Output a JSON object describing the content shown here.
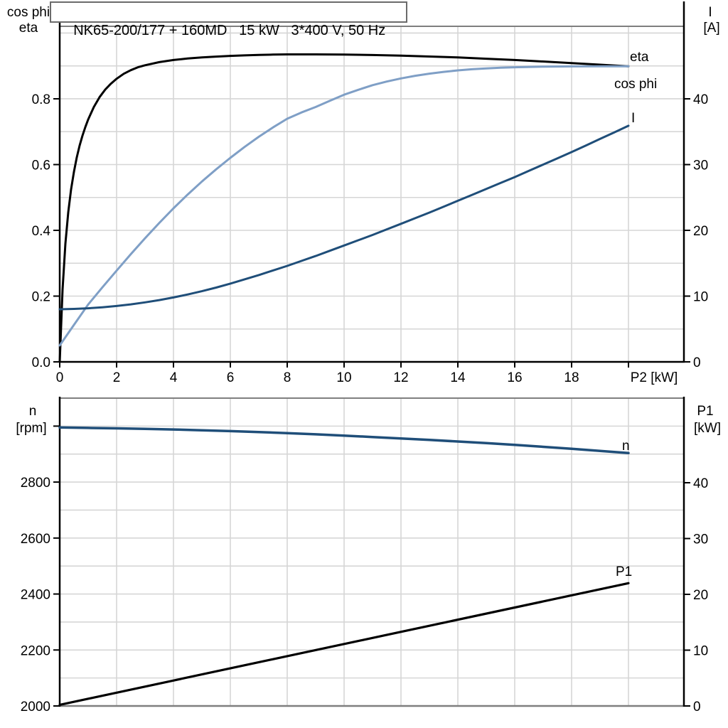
{
  "title": "NK65-200/177 + 160MD   15 kW   3*400 V, 50 Hz",
  "colors": {
    "black": "#000000",
    "dark_blue": "#1f4e79",
    "light_blue": "#7f9fc6",
    "grid": "#d6d6d6",
    "frame": "#7f7f7f"
  },
  "chart_data": [
    {
      "type": "line",
      "title": "NK65-200/177 + 160MD   15 kW   3*400 V, 50 Hz",
      "x_axis": {
        "label": "P2 [kW]",
        "min": 0,
        "max": 21.95,
        "tick_values": [
          0,
          2,
          4,
          6,
          8,
          10,
          12,
          14,
          16,
          18,
          20
        ],
        "tick_labels": [
          "0",
          "2",
          "4",
          "6",
          "8",
          "10",
          "12",
          "14",
          "16",
          "18",
          ""
        ],
        "gridlines": [
          2,
          4,
          6,
          8,
          10,
          12,
          14,
          16,
          18,
          20
        ]
      },
      "left_axis": {
        "label_lines": [
          "cos phi",
          "eta"
        ],
        "min": 0,
        "max": 1.0205,
        "tick_values": [
          0,
          0.2,
          0.4,
          0.6,
          0.8
        ],
        "tick_labels": [
          "0.0",
          "0.2",
          "0.4",
          "0.6",
          "0.8"
        ],
        "gridlines": [
          0.1,
          0.2,
          0.3,
          0.4,
          0.5,
          0.6,
          0.7,
          0.8,
          0.9,
          1.0
        ]
      },
      "right_axis": {
        "label_lines": [
          "I",
          "[A]"
        ],
        "min": 0,
        "max": 51.03,
        "tick_values": [
          0,
          10,
          20,
          30,
          40
        ],
        "tick_labels": [
          "0",
          "10",
          "20",
          "30",
          "40"
        ]
      },
      "series": [
        {
          "name": "eta",
          "label": "eta",
          "color": "#000000",
          "axis": "left",
          "width": 3,
          "points": [
            [
              0,
              0
            ],
            [
              0.1,
              0.22
            ],
            [
              0.2,
              0.36
            ],
            [
              0.3,
              0.455
            ],
            [
              0.4,
              0.525
            ],
            [
              0.5,
              0.578
            ],
            [
              0.6,
              0.622
            ],
            [
              0.7,
              0.658
            ],
            [
              0.8,
              0.688
            ],
            [
              0.9,
              0.714
            ],
            [
              1,
              0.737
            ],
            [
              1.2,
              0.775
            ],
            [
              1.4,
              0.805
            ],
            [
              1.6,
              0.828
            ],
            [
              1.8,
              0.846
            ],
            [
              2,
              0.861
            ],
            [
              2.25,
              0.876
            ],
            [
              2.5,
              0.887
            ],
            [
              2.75,
              0.896
            ],
            [
              3,
              0.902
            ],
            [
              3.5,
              0.9115
            ],
            [
              4,
              0.918
            ],
            [
              4.5,
              0.9225
            ],
            [
              5,
              0.926
            ],
            [
              5.5,
              0.9285
            ],
            [
              6,
              0.9305
            ],
            [
              6.5,
              0.932
            ],
            [
              7,
              0.9335
            ],
            [
              7.5,
              0.9345
            ],
            [
              8,
              0.935
            ],
            [
              9,
              0.9352
            ],
            [
              10,
              0.9345
            ],
            [
              11,
              0.9332
            ],
            [
              12,
              0.9312
            ],
            [
              13,
              0.9287
            ],
            [
              14,
              0.9257
            ],
            [
              15,
              0.922
            ],
            [
              16,
              0.918
            ],
            [
              17,
              0.9135
            ],
            [
              18,
              0.9085
            ],
            [
              19,
              0.9038
            ],
            [
              20,
              0.899
            ]
          ]
        },
        {
          "name": "cos-phi",
          "label": "cos phi",
          "color": "#7f9fc6",
          "axis": "left",
          "width": 3,
          "points": [
            [
              0,
              0.05
            ],
            [
              0.5,
              0.1125
            ],
            [
              1,
              0.1745
            ],
            [
              1.5,
              0.2265
            ],
            [
              2,
              0.2775
            ],
            [
              2.5,
              0.3275
            ],
            [
              3,
              0.376
            ],
            [
              3.5,
              0.4225
            ],
            [
              4,
              0.467
            ],
            [
              4.5,
              0.509
            ],
            [
              5,
              0.5485
            ],
            [
              5.5,
              0.5855
            ],
            [
              6,
              0.6205
            ],
            [
              6.5,
              0.6535
            ],
            [
              7,
              0.6845
            ],
            [
              7.5,
              0.713
            ],
            [
              8,
              0.7395
            ],
            [
              8.5,
              0.7585
            ],
            [
              9,
              0.775
            ],
            [
              9.5,
              0.794
            ],
            [
              10,
              0.8125
            ],
            [
              10.5,
              0.8275
            ],
            [
              11,
              0.8415
            ],
            [
              11.5,
              0.8525
            ],
            [
              12,
              0.862
            ],
            [
              12.5,
              0.87
            ],
            [
              13,
              0.8765
            ],
            [
              13.5,
              0.882
            ],
            [
              14,
              0.8865
            ],
            [
              14.5,
              0.89
            ],
            [
              15,
              0.8925
            ],
            [
              15.5,
              0.8945
            ],
            [
              16,
              0.896
            ],
            [
              17,
              0.898
            ],
            [
              18,
              0.8985
            ],
            [
              19,
              0.8988
            ],
            [
              20,
              0.899
            ]
          ]
        },
        {
          "name": "I",
          "label": "I",
          "color": "#1f4e79",
          "axis": "right",
          "width": 3,
          "points": [
            [
              0,
              8
            ],
            [
              0.5,
              8.05
            ],
            [
              1,
              8.15
            ],
            [
              1.5,
              8.3
            ],
            [
              2,
              8.5
            ],
            [
              2.5,
              8.75
            ],
            [
              3,
              9.05
            ],
            [
              3.5,
              9.4
            ],
            [
              4,
              9.8
            ],
            [
              4.5,
              10.25
            ],
            [
              5,
              10.75
            ],
            [
              5.5,
              11.3
            ],
            [
              6,
              11.9
            ],
            [
              6.5,
              12.55
            ],
            [
              7,
              13.2
            ],
            [
              7.5,
              13.9
            ],
            [
              8,
              14.6
            ],
            [
              8.5,
              15.35
            ],
            [
              9,
              16.1
            ],
            [
              9.5,
              16.9
            ],
            [
              10,
              17.7
            ],
            [
              10.5,
              18.5
            ],
            [
              11,
              19.3
            ],
            [
              11.5,
              20.15
            ],
            [
              12,
              21
            ],
            [
              12.5,
              21.85
            ],
            [
              13,
              22.7
            ],
            [
              13.5,
              23.6
            ],
            [
              14,
              24.5
            ],
            [
              14.5,
              25.4
            ],
            [
              15,
              26.3
            ],
            [
              15.5,
              27.2
            ],
            [
              16,
              28.1
            ],
            [
              16.5,
              29.05
            ],
            [
              17,
              30
            ],
            [
              17.5,
              30.95
            ],
            [
              18,
              31.9
            ],
            [
              18.5,
              32.9
            ],
            [
              19,
              33.9
            ],
            [
              19.5,
              34.9
            ],
            [
              20,
              35.9
            ]
          ]
        }
      ]
    },
    {
      "type": "line",
      "x_axis": {
        "label": "",
        "min": 0,
        "max": 21.95,
        "tick_values": [],
        "tick_labels": [],
        "gridlines": [
          2,
          4,
          6,
          8,
          10,
          12,
          14,
          16,
          18,
          20
        ]
      },
      "left_axis": {
        "label_lines": [
          "n",
          "[rpm]"
        ],
        "min": 2000,
        "max": 3100,
        "tick_values": [
          2000,
          2200,
          2400,
          2600,
          2800,
          3000
        ],
        "tick_labels": [
          "2000",
          "2200",
          "2400",
          "2600",
          "2800",
          ""
        ],
        "gridlines": [
          2100,
          2200,
          2300,
          2400,
          2500,
          2600,
          2700,
          2800,
          2900,
          3000
        ]
      },
      "right_axis": {
        "label_lines": [
          "P1",
          "[kW]"
        ],
        "min": 0,
        "max": 55.16,
        "tick_values": [
          0,
          10,
          20,
          30,
          40
        ],
        "tick_labels": [
          "0",
          "10",
          "20",
          "30",
          "40"
        ]
      },
      "series": [
        {
          "name": "n",
          "label": "n",
          "color": "#1f4e79",
          "axis": "left",
          "width": 3.5,
          "points": [
            [
              0,
              2995
            ],
            [
              1,
              2993.6
            ],
            [
              2,
              2992
            ],
            [
              3,
              2990.1
            ],
            [
              4,
              2988
            ],
            [
              5,
              2985.1
            ],
            [
              6,
              2982
            ],
            [
              7,
              2978.6
            ],
            [
              8,
              2975
            ],
            [
              9,
              2970.6
            ],
            [
              10,
              2966
            ],
            [
              11,
              2961.1
            ],
            [
              12,
              2956
            ],
            [
              13,
              2950.6
            ],
            [
              14,
              2945
            ],
            [
              15,
              2939.1
            ],
            [
              16,
              2933
            ],
            [
              17,
              2926.1
            ],
            [
              18,
              2919
            ],
            [
              19,
              2911.6
            ],
            [
              20,
              2904
            ]
          ]
        },
        {
          "name": "P1",
          "label": "P1",
          "color": "#000000",
          "axis": "right",
          "width": 3.2,
          "points": [
            [
              0,
              0.2
            ],
            [
              20,
              22
            ]
          ]
        }
      ]
    }
  ]
}
